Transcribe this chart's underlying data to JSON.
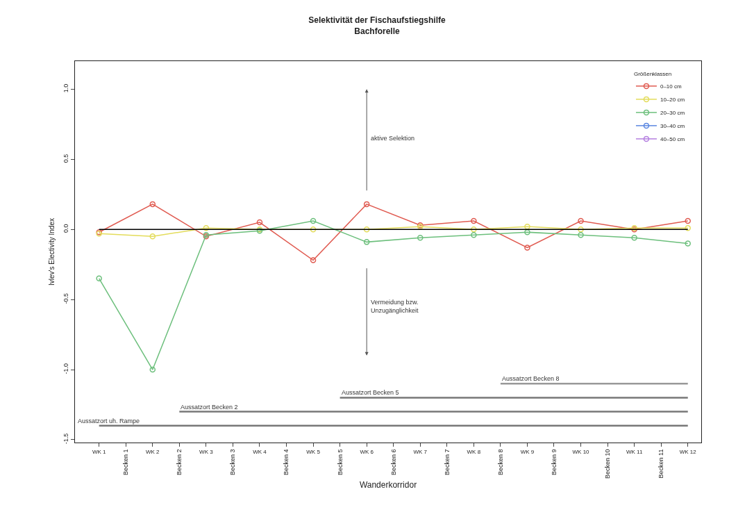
{
  "chart_data": {
    "type": "line",
    "title": "Selektivität der Fischaufstiegshilfe",
    "subtitle": "Bachforelle",
    "xlabel": "Wanderkorridor",
    "ylabel": "Ivlev's Electivity Index",
    "legend_title": "Größenklassen",
    "categories": [
      "WK 1",
      "Becken 1",
      "WK 2",
      "Becken 2",
      "WK 3",
      "Becken 3",
      "WK 4",
      "Becken 4",
      "WK 5",
      "Becken 5",
      "WK 6",
      "Becken 6",
      "WK 7",
      "Becken 7",
      "WK 8",
      "Becken 8",
      "WK 9",
      "Becken 9",
      "WK 10",
      "Becken 10",
      "WK 11",
      "Becken 11",
      "WK 12"
    ],
    "series": [
      {
        "name": "0–10 cm",
        "color": "#e05a50",
        "values": [
          -0.02,
          null,
          0.18,
          null,
          -0.05,
          null,
          0.05,
          null,
          -0.22,
          null,
          0.18,
          null,
          0.03,
          null,
          0.06,
          null,
          -0.13,
          null,
          0.06,
          null,
          0.0,
          null,
          0.06
        ]
      },
      {
        "name": "10–20 cm",
        "color": "#e3dc5a",
        "values": [
          -0.03,
          null,
          -0.05,
          null,
          0.01,
          null,
          0.0,
          null,
          0.0,
          null,
          0.0,
          null,
          0.02,
          null,
          0.0,
          null,
          0.02,
          null,
          0.0,
          null,
          0.01,
          null,
          0.01
        ]
      },
      {
        "name": "20–30 cm",
        "color": "#6cbf7c",
        "values": [
          -0.35,
          null,
          -1.0,
          null,
          -0.04,
          null,
          -0.01,
          null,
          0.06,
          null,
          -0.09,
          null,
          -0.06,
          null,
          -0.04,
          null,
          -0.02,
          null,
          -0.04,
          null,
          -0.06,
          null,
          -0.1
        ]
      },
      {
        "name": "30–40 cm",
        "color": "#5a86e0",
        "values": [
          null,
          null,
          null,
          null,
          null,
          null,
          null,
          null,
          null,
          null,
          null,
          null,
          null,
          null,
          null,
          null,
          null,
          null,
          null,
          null,
          null,
          null,
          null
        ]
      },
      {
        "name": "40–50 cm",
        "color": "#b47fe0",
        "values": [
          null,
          null,
          null,
          null,
          null,
          null,
          null,
          null,
          null,
          null,
          null,
          null,
          null,
          null,
          null,
          null,
          null,
          null,
          null,
          null,
          null,
          null,
          null
        ]
      },
      {
        "name": "Aussatzort uh. Rampe",
        "color": "#777777",
        "marker": "none",
        "values": [
          -1.4,
          -1.4,
          -1.4,
          -1.4,
          -1.4,
          -1.4,
          -1.4,
          -1.4,
          -1.4,
          -1.4,
          -1.4,
          -1.4,
          -1.4,
          -1.4,
          -1.4,
          -1.4,
          -1.4,
          -1.4,
          -1.4,
          -1.4,
          -1.4,
          -1.4,
          -1.4
        ]
      },
      {
        "name": "Aussatzort Becken 2",
        "color": "#777777",
        "marker": "none",
        "values": [
          null,
          null,
          null,
          -1.3,
          -1.3,
          -1.3,
          -1.3,
          -1.3,
          -1.3,
          -1.3,
          -1.3,
          -1.3,
          -1.3,
          -1.3,
          -1.3,
          -1.3,
          -1.3,
          -1.3,
          -1.3,
          -1.3,
          -1.3,
          -1.3,
          -1.3
        ]
      },
      {
        "name": "Aussatzort Becken 5",
        "color": "#777777",
        "marker": "none",
        "values": [
          null,
          null,
          null,
          null,
          null,
          null,
          null,
          null,
          null,
          -1.2,
          -1.2,
          -1.2,
          -1.2,
          -1.2,
          -1.2,
          -1.2,
          -1.2,
          -1.2,
          -1.2,
          -1.2,
          -1.2,
          -1.2,
          -1.2
        ]
      },
      {
        "name": "Aussatzort Becken 8",
        "color": "#999999",
        "marker": "none",
        "values": [
          null,
          null,
          null,
          null,
          null,
          null,
          null,
          null,
          null,
          null,
          null,
          null,
          null,
          null,
          null,
          -1.1,
          -1.1,
          -1.1,
          -1.1,
          -1.1,
          -1.1,
          -1.1,
          -1.1
        ]
      }
    ],
    "ylim": [
      -1.52,
      1.2
    ],
    "yticks": [
      {
        "value": -1.5,
        "label": "-1.5"
      },
      {
        "value": -1,
        "label": "-1.0"
      },
      {
        "value": -0.5,
        "label": "-0.5"
      },
      {
        "value": 0,
        "label": "0.0"
      },
      {
        "value": 0.5,
        "label": "0.5"
      },
      {
        "value": 1,
        "label": "1.0"
      }
    ],
    "grid": false,
    "legend": "top right",
    "marker": "circle",
    "line_style": "solid",
    "ref_lines": [
      {
        "axis": "y",
        "value": 0,
        "color": "#000000"
      }
    ],
    "annotations": [
      "aktive Selektion",
      "Vermeidung bzw.\nUnzugänglichkeit"
    ]
  }
}
